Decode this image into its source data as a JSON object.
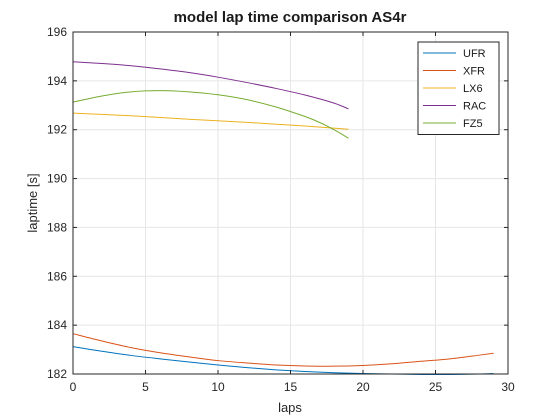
{
  "chart_data": {
    "type": "line",
    "title": "model lap time comparison AS4r",
    "xlabel": "laps",
    "ylabel": "laptime [s]",
    "xlim": [
      0,
      30
    ],
    "ylim": [
      182,
      196
    ],
    "xticks": [
      0,
      5,
      10,
      15,
      20,
      25,
      30
    ],
    "yticks": [
      182,
      184,
      186,
      188,
      190,
      192,
      194,
      196
    ],
    "grid": true,
    "legend_position": "top-right",
    "series": [
      {
        "name": "UFR",
        "color": "#0072BD",
        "x": [
          0,
          2,
          4,
          6,
          8,
          10,
          12,
          14,
          16,
          18,
          20,
          22,
          24,
          26,
          28,
          29
        ],
        "y": [
          183.12,
          182.93,
          182.76,
          182.62,
          182.49,
          182.37,
          182.26,
          182.17,
          182.1,
          182.05,
          182.02,
          182.0,
          181.98,
          181.98,
          182.0,
          182.02
        ]
      },
      {
        "name": "XFR",
        "color": "#D95319",
        "x": [
          0,
          2,
          4,
          6,
          8,
          10,
          12,
          14,
          16,
          18,
          20,
          22,
          24,
          26,
          28,
          29
        ],
        "y": [
          183.65,
          183.35,
          183.08,
          182.87,
          182.7,
          182.55,
          182.45,
          182.37,
          182.33,
          182.32,
          182.35,
          182.42,
          182.52,
          182.62,
          182.77,
          182.85
        ]
      },
      {
        "name": "LX6",
        "color": "#EDB120",
        "x": [
          0,
          4,
          8,
          12,
          16,
          19
        ],
        "y": [
          192.68,
          192.57,
          192.43,
          192.3,
          192.15,
          192.02
        ]
      },
      {
        "name": "RAC",
        "color": "#7E2F8E",
        "x": [
          0,
          2,
          4,
          6,
          8,
          10,
          12,
          14,
          16,
          18,
          19
        ],
        "y": [
          194.78,
          194.71,
          194.62,
          194.49,
          194.34,
          194.15,
          193.93,
          193.69,
          193.42,
          193.09,
          192.85
        ]
      },
      {
        "name": "FZ5",
        "color": "#77AC30",
        "x": [
          0,
          2,
          4,
          6,
          8,
          10,
          12,
          14,
          16,
          17,
          18,
          19
        ],
        "y": [
          193.13,
          193.38,
          193.55,
          193.6,
          193.55,
          193.43,
          193.23,
          192.93,
          192.54,
          192.3,
          192.0,
          191.65
        ]
      }
    ]
  }
}
